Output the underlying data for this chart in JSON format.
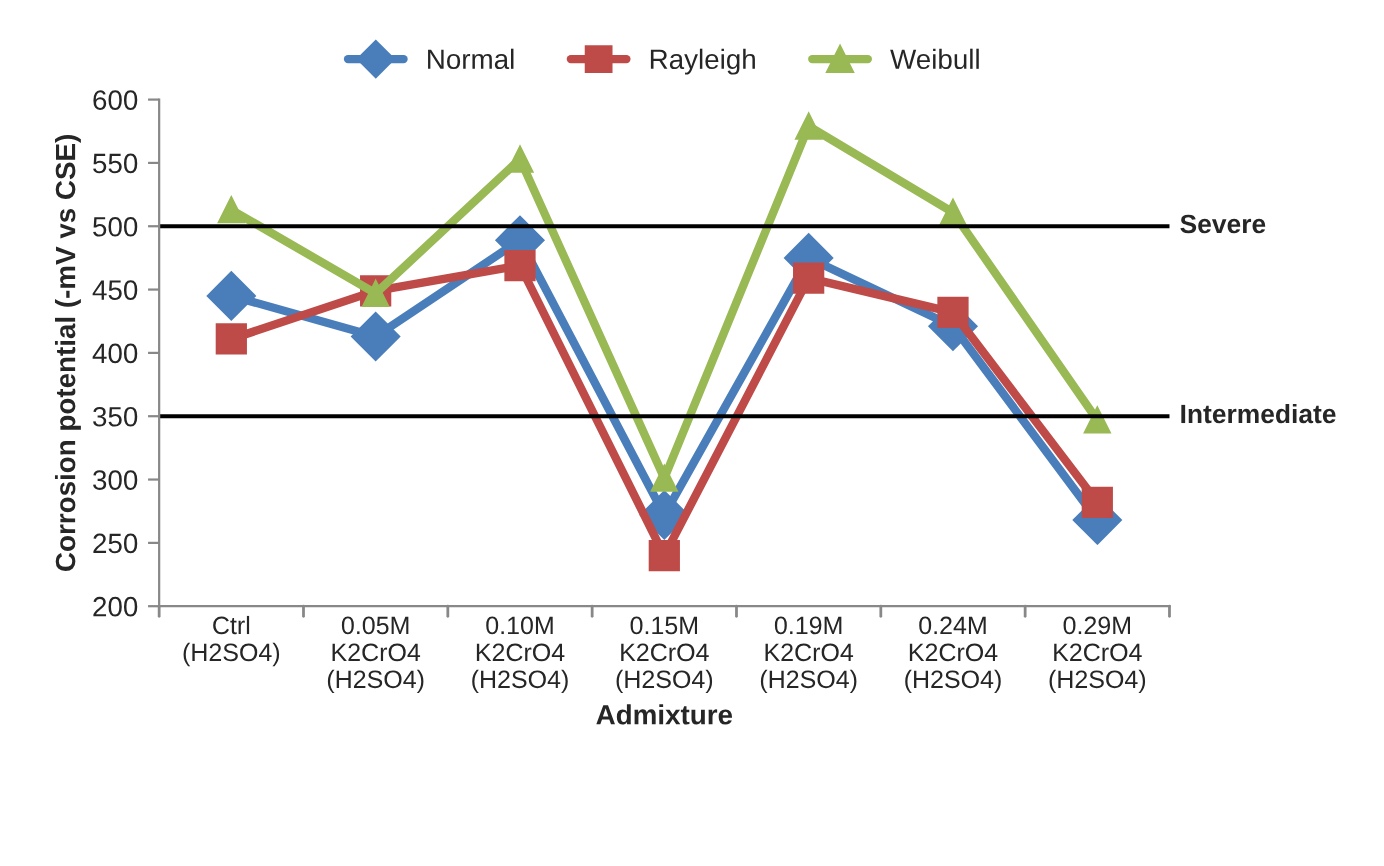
{
  "chart_data": {
    "type": "line",
    "xlabel": "Admixture",
    "ylabel": "Corrosion potential (-mV vs CSE)",
    "categories": [
      "Ctrl\n(H2SO4)",
      "0.05M\nK2CrO4\n(H2SO4)",
      "0.10M\nK2CrO4\n(H2SO4)",
      "0.15M\nK2CrO4\n(H2SO4)",
      "0.19M\nK2CrO4\n(H2SO4)",
      "0.24M\nK2CrO4\n(H2SO4)",
      "0.29M\nK2CrO4\n(H2SO4)"
    ],
    "series": [
      {
        "name": "Normal",
        "color": "#4a7ebb",
        "marker": "diamond",
        "values": [
          445,
          413,
          489,
          272,
          475,
          421,
          268
        ]
      },
      {
        "name": "Rayleigh",
        "color": "#be4b48",
        "marker": "square",
        "values": [
          411,
          449,
          469,
          240,
          459,
          432,
          282
        ]
      },
      {
        "name": "Weibull",
        "color": "#98b954",
        "marker": "triangle",
        "values": [
          513,
          447,
          553,
          301,
          579,
          511,
          347
        ]
      }
    ],
    "ylim": [
      200,
      600
    ],
    "yticks": [
      200,
      250,
      300,
      350,
      400,
      450,
      500,
      550,
      600
    ],
    "ref_lines": [
      {
        "axis": "y",
        "value": 500,
        "label": "Severe",
        "color": "#000000"
      },
      {
        "axis": "y",
        "value": 350,
        "label": "Intermediate",
        "color": "#000000"
      }
    ],
    "grid": false,
    "legend": "top",
    "line_style": "solid"
  }
}
